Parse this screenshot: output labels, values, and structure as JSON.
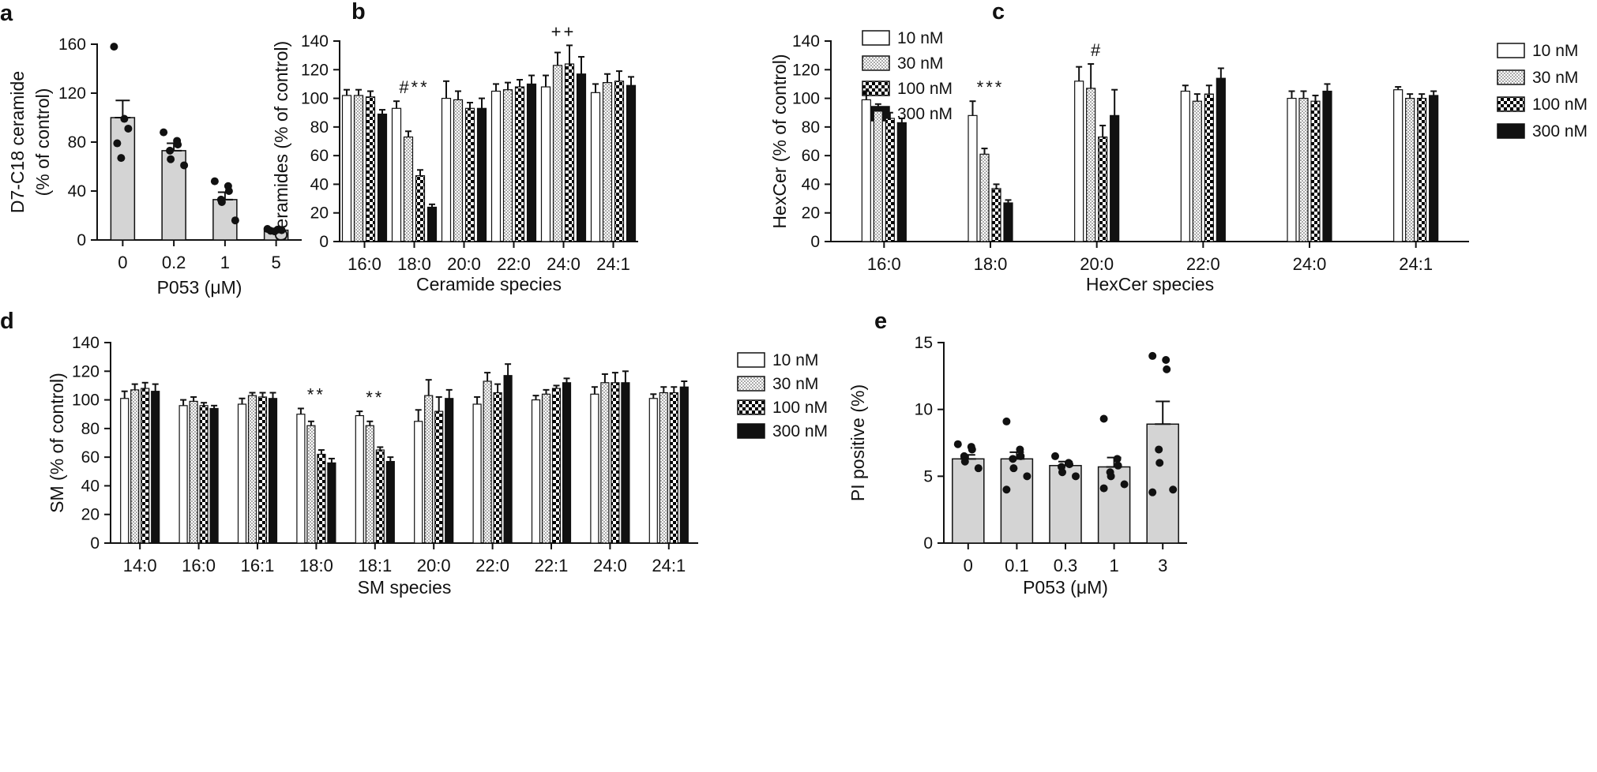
{
  "chart_data": [
    {
      "id": "a",
      "type": "bar",
      "panel_label": "a",
      "categories": [
        "0",
        "0.2",
        "1",
        "5"
      ],
      "values": [
        100,
        73,
        33,
        8
      ],
      "errors": [
        14,
        6,
        6,
        1
      ],
      "points": [
        [
          158,
          99,
          91,
          79,
          67
        ],
        [
          88,
          81,
          78,
          73,
          66,
          61
        ],
        [
          48,
          44,
          40,
          33,
          31,
          16
        ],
        [
          9,
          8.5,
          8,
          7.5,
          7
        ]
      ],
      "xlabel": "P053 (μM)",
      "ylabel": [
        "D7-C18 ceramide",
        "(% of control)"
      ],
      "ylim": [
        0,
        160
      ],
      "yticks": [
        "0",
        "40",
        "80",
        "120",
        "160"
      ],
      "color": "#d4d4d4"
    },
    {
      "id": "b",
      "type": "bar",
      "panel_label": "b",
      "categories": [
        "16:0",
        "18:0",
        "20:0",
        "22:0",
        "24:0",
        "24:1"
      ],
      "series": [
        {
          "name": "10 nM",
          "values": [
            102,
            93,
            100,
            105,
            108,
            104
          ],
          "errors": [
            4,
            5,
            12,
            5,
            8,
            6
          ]
        },
        {
          "name": "30 nM",
          "values": [
            102,
            73,
            99,
            106,
            123,
            111
          ],
          "errors": [
            4,
            4,
            6,
            5,
            9,
            6
          ]
        },
        {
          "name": "100 nM",
          "values": [
            101,
            46,
            93,
            108,
            124,
            112
          ],
          "errors": [
            4,
            4,
            4,
            5,
            13,
            7
          ]
        },
        {
          "name": "300 nM",
          "values": [
            89,
            24,
            93,
            110,
            117,
            109
          ],
          "errors": [
            3,
            2,
            7,
            6,
            12,
            6
          ]
        }
      ],
      "annotations": [
        {
          "category": "18:0",
          "text": "#**"
        },
        {
          "category": "24:0",
          "text": "++"
        }
      ],
      "xlabel": "Ceramide species",
      "ylabel": [
        "Ceramides (% of control)"
      ],
      "ylim": [
        0,
        140
      ],
      "yticks": [
        "0",
        "20",
        "40",
        "60",
        "80",
        "100",
        "120",
        "140"
      ]
    },
    {
      "id": "c",
      "type": "bar",
      "panel_label": "c",
      "categories": [
        "16:0",
        "18:0",
        "20:0",
        "22:0",
        "24:0",
        "24:1"
      ],
      "series": [
        {
          "name": "10 nM",
          "values": [
            99,
            88,
            112,
            105,
            100,
            106
          ],
          "errors": [
            6,
            10,
            10,
            4,
            5,
            2
          ]
        },
        {
          "name": "30 nM",
          "values": [
            91,
            61,
            107,
            98,
            100,
            100
          ],
          "errors": [
            5,
            4,
            17,
            5,
            5,
            3
          ]
        },
        {
          "name": "100 nM",
          "values": [
            86,
            37,
            73,
            103,
            98,
            100
          ],
          "errors": [
            4,
            3,
            8,
            6,
            4,
            3
          ]
        },
        {
          "name": "300 nM",
          "values": [
            83,
            27,
            88,
            114,
            105,
            102
          ],
          "errors": [
            3,
            2,
            18,
            7,
            5,
            3
          ]
        }
      ],
      "annotations": [
        {
          "category": "18:0",
          "text": "***"
        },
        {
          "category": "20:0",
          "text": "#"
        }
      ],
      "xlabel": "HexCer species",
      "ylabel": [
        "HexCer (% of control)"
      ],
      "ylim": [
        0,
        140
      ],
      "yticks": [
        "0",
        "20",
        "40",
        "60",
        "80",
        "100",
        "120",
        "140"
      ]
    },
    {
      "id": "d",
      "type": "bar",
      "panel_label": "d",
      "categories": [
        "14:0",
        "16:0",
        "16:1",
        "18:0",
        "18:1",
        "20:0",
        "22:0",
        "22:1",
        "24:0",
        "24:1"
      ],
      "series": [
        {
          "name": "10 nM",
          "values": [
            101,
            96,
            97,
            90,
            89,
            85,
            97,
            100,
            104,
            101
          ],
          "errors": [
            5,
            4,
            4,
            4,
            3,
            8,
            5,
            3,
            5,
            3
          ]
        },
        {
          "name": "30 nM",
          "values": [
            107,
            99,
            103,
            82,
            82,
            103,
            113,
            104,
            112,
            105
          ],
          "errors": [
            4,
            3,
            2,
            3,
            3,
            11,
            6,
            3,
            6,
            4
          ]
        },
        {
          "name": "100 nM",
          "values": [
            108,
            96,
            102,
            62,
            65,
            92,
            105,
            108,
            112,
            105
          ],
          "errors": [
            4,
            2,
            3,
            3,
            2,
            10,
            6,
            2,
            7,
            4
          ]
        },
        {
          "name": "300 nM",
          "values": [
            106,
            94,
            101,
            56,
            57,
            101,
            117,
            112,
            112,
            109
          ],
          "errors": [
            5,
            2,
            4,
            3,
            3,
            6,
            8,
            3,
            8,
            4
          ]
        }
      ],
      "annotations": [
        {
          "category": "18:0",
          "text": "**"
        },
        {
          "category": "18:1",
          "text": "**"
        }
      ],
      "xlabel": "SM species",
      "ylabel": [
        "SM (% of control)"
      ],
      "ylim": [
        0,
        140
      ],
      "yticks": [
        "0",
        "20",
        "40",
        "60",
        "80",
        "100",
        "120",
        "140"
      ]
    },
    {
      "id": "e",
      "type": "bar",
      "panel_label": "e",
      "categories": [
        "0",
        "0.1",
        "0.3",
        "1",
        "3"
      ],
      "values": [
        6.3,
        6.3,
        5.8,
        5.7,
        8.9
      ],
      "errors": [
        0.3,
        0.5,
        0.3,
        0.7,
        1.7
      ],
      "points": [
        [
          7.4,
          7.2,
          7.0,
          6.5,
          6.1,
          5.6
        ],
        [
          9.1,
          7.0,
          6.5,
          6.3,
          5.6,
          5.0,
          4.0
        ],
        [
          6.5,
          6.0,
          5.9,
          5.7,
          5.3,
          5.0
        ],
        [
          9.3,
          6.3,
          5.8,
          5.3,
          5.0,
          4.4,
          4.1
        ],
        [
          14.0,
          13.7,
          13.0,
          7.0,
          6.0,
          4.0,
          3.8
        ]
      ],
      "xlabel": "P053 (μM)",
      "ylabel": [
        "PI positive (%)"
      ],
      "ylim": [
        0,
        15
      ],
      "yticks": [
        "0",
        "5",
        "10",
        "15"
      ],
      "color": "#d4d4d4"
    }
  ]
}
